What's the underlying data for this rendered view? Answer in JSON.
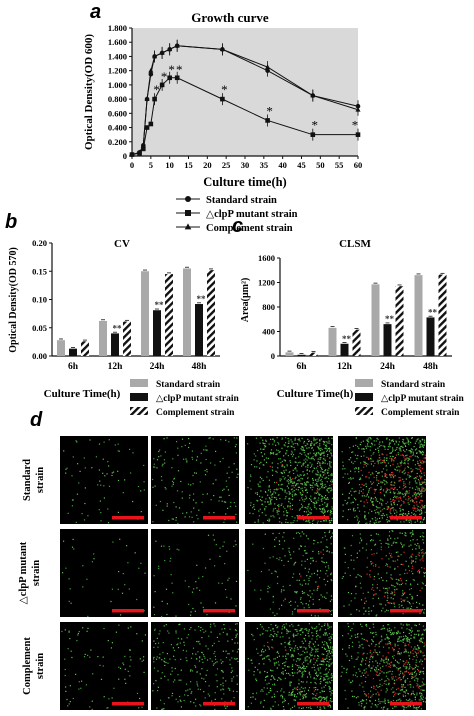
{
  "colors": {
    "black": "#111111",
    "gray": "#a9a9a9",
    "plot_bg": "#d9d9d9",
    "scale_bar": "#e8141b"
  },
  "chart_data": [
    {
      "panel_label": "a",
      "type": "line",
      "title": "Growth curve",
      "xlabel": "Culture time(h)",
      "ylabel": "Optical Density(OD 600)",
      "xlim": [
        0,
        60
      ],
      "ylim": [
        0,
        1.8
      ],
      "x_ticks": [
        0,
        5,
        10,
        15,
        20,
        25,
        30,
        35,
        40,
        45,
        50,
        55,
        60
      ],
      "y_ticks": [
        "0",
        "0.200",
        "0.400",
        "0.600",
        "0.800",
        "1.000",
        "1.200",
        "1.400",
        "1.600",
        "1.800"
      ],
      "grid": false,
      "legend": "bottom",
      "series": [
        {
          "name": "Standard strain",
          "marker": "circle",
          "x": [
            0,
            2,
            3,
            4,
            5,
            6,
            8,
            10,
            12,
            24,
            36,
            48,
            60
          ],
          "y": [
            0.02,
            0.05,
            0.15,
            0.8,
            1.15,
            1.4,
            1.45,
            1.5,
            1.55,
            1.5,
            1.2,
            0.85,
            0.7
          ]
        },
        {
          "name": "△clpP mutant strain",
          "marker": "square",
          "x": [
            0,
            2,
            3,
            4,
            5,
            6,
            8,
            10,
            12,
            24,
            36,
            48,
            60
          ],
          "y": [
            0.02,
            0.04,
            0.1,
            0.4,
            0.45,
            0.8,
            1.0,
            1.1,
            1.1,
            0.8,
            0.5,
            0.3,
            0.3
          ]
        },
        {
          "name": "Complement strain",
          "marker": "triangle",
          "x": [
            0,
            2,
            3,
            4,
            5,
            6,
            8,
            10,
            12,
            24,
            36,
            48,
            60
          ],
          "y": [
            0.02,
            0.05,
            0.15,
            0.8,
            1.2,
            1.4,
            1.45,
            1.5,
            1.55,
            1.5,
            1.25,
            0.85,
            0.65
          ]
        }
      ],
      "annotations": [
        {
          "text": "*",
          "x": 6,
          "y": 0.9
        },
        {
          "text": "*",
          "x": 8,
          "y": 1.08
        },
        {
          "text": "*",
          "x": 10,
          "y": 1.18
        },
        {
          "text": "*",
          "x": 12,
          "y": 1.18
        },
        {
          "text": "*",
          "x": 24,
          "y": 0.9
        },
        {
          "text": "*",
          "x": 36,
          "y": 0.6
        },
        {
          "text": "*",
          "x": 48,
          "y": 0.4
        },
        {
          "text": "*",
          "x": 60,
          "y": 0.4
        }
      ]
    },
    {
      "panel_label": "b",
      "type": "bar",
      "title": "CV",
      "xlabel": "Culture Time(h)",
      "ylabel": "Optical Density(OD 570)",
      "categories": [
        "6h",
        "12h",
        "24h",
        "48h"
      ],
      "ylim": [
        0,
        0.2
      ],
      "y_ticks": [
        "0.00",
        "0.05",
        "0.10",
        "0.15",
        "0.20"
      ],
      "legend": "bottom",
      "series": [
        {
          "name": "Standard strain",
          "style": "gray",
          "values": [
            0.028,
            0.062,
            0.15,
            0.155
          ]
        },
        {
          "name": "△clpP mutant strain",
          "style": "black",
          "values": [
            0.013,
            0.04,
            0.081,
            0.092
          ]
        },
        {
          "name": "Complement strain",
          "style": "hatch",
          "values": [
            0.026,
            0.061,
            0.145,
            0.152
          ]
        }
      ],
      "annotations": [
        {
          "text": "**",
          "category": "12h",
          "series": 1
        },
        {
          "text": "**",
          "category": "24h",
          "series": 1
        },
        {
          "text": "**",
          "category": "48h",
          "series": 1
        }
      ]
    },
    {
      "panel_label": "c",
      "type": "bar",
      "title": "CLSM",
      "xlabel": "Culture Time(h)",
      "ylabel": "Area(μm²)",
      "categories": [
        "6h",
        "12h",
        "24h",
        "48h"
      ],
      "ylim": [
        0,
        1600
      ],
      "y_ticks": [
        "0",
        "400",
        "800",
        "1200",
        "1600"
      ],
      "legend": "bottom",
      "series": [
        {
          "name": "Standard strain",
          "style": "gray",
          "values": [
            60,
            460,
            1170,
            1320
          ]
        },
        {
          "name": "△clpP mutant strain",
          "style": "black",
          "values": [
            20,
            200,
            520,
            630
          ]
        },
        {
          "name": "Complement strain",
          "style": "hatch",
          "values": [
            55,
            430,
            1140,
            1330
          ]
        }
      ],
      "annotations": [
        {
          "text": "**",
          "category": "12h",
          "series": 1
        },
        {
          "text": "**",
          "category": "24h",
          "series": 1
        },
        {
          "text": "**",
          "category": "48h",
          "series": 1
        }
      ]
    }
  ],
  "panel_d": {
    "label": "d",
    "rows": [
      {
        "lines": [
          "Standard",
          "strain"
        ],
        "density": [
          0.08,
          0.18,
          0.9,
          0.95
        ],
        "red": [
          0.0,
          0.0,
          0.05,
          0.35
        ]
      },
      {
        "lines": [
          "△clpP mutant",
          "strain"
        ],
        "density": [
          0.04,
          0.08,
          0.25,
          0.4
        ],
        "red": [
          0.0,
          0.0,
          0.05,
          0.3
        ]
      },
      {
        "lines": [
          "Complement",
          "strain"
        ],
        "density": [
          0.1,
          0.3,
          0.75,
          0.8
        ],
        "red": [
          0.0,
          0.0,
          0.05,
          0.35
        ]
      }
    ]
  }
}
